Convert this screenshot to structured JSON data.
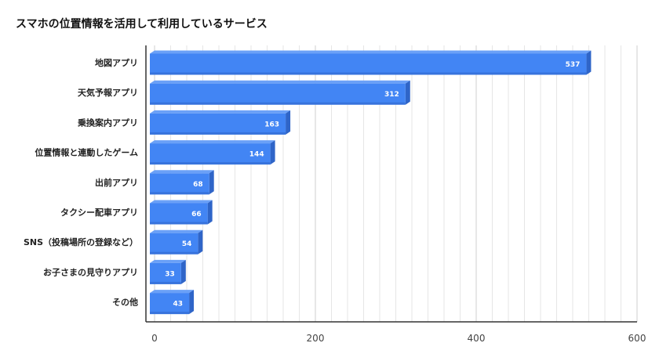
{
  "colors": {
    "bar_front": "#4285f4",
    "bar_top": "#6aa0f7",
    "bar_side": "#2f65c8",
    "grid": "#d9d9d9",
    "axis": "#333333"
  },
  "chart_data": {
    "type": "bar",
    "orientation": "horizontal",
    "style": "3d",
    "title": "スマホの位置情報を活用して利用しているサービス",
    "xlabel": "",
    "ylabel": "",
    "xlim": [
      0,
      600
    ],
    "x_ticks": [
      0,
      200,
      400,
      600
    ],
    "grid": true,
    "legend": "none",
    "categories": [
      "地図アプリ",
      "天気予報アプリ",
      "乗換案内アプリ",
      "位置情報と連動したゲーム",
      "出前アプリ",
      "タクシー配車アプリ",
      "SNS（投稿場所の登録など）",
      "お子さまの見守りアプリ",
      "その他"
    ],
    "values": [
      537,
      312,
      163,
      144,
      68,
      66,
      54,
      33,
      43
    ]
  }
}
